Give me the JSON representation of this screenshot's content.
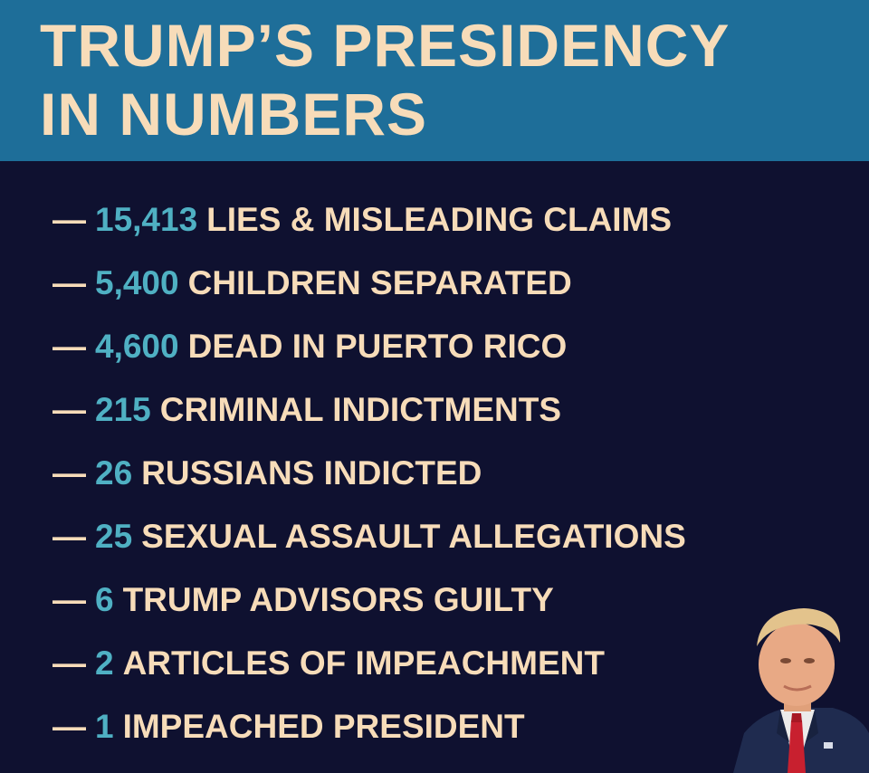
{
  "header": {
    "title_line1": "TRUMP’S PRESIDENCY",
    "title_line2": "IN NUMBERS"
  },
  "colors": {
    "header_bg": "#1e6e99",
    "body_bg": "#0f1130",
    "text_cream": "#f7dcb9",
    "number_teal": "#4fb0c3"
  },
  "items": [
    {
      "dash": "—",
      "number": "15,413",
      "label": "LIES & MISLEADING CLAIMS"
    },
    {
      "dash": "—",
      "number": "5,400",
      "label": "CHILDREN SEPARATED"
    },
    {
      "dash": "—",
      "number": "4,600",
      "label": "DEAD IN PUERTO RICO"
    },
    {
      "dash": "—",
      "number": "215",
      "label": "CRIMINAL INDICTMENTS"
    },
    {
      "dash": "—",
      "number": "26",
      "label": "RUSSIANS INDICTED"
    },
    {
      "dash": "—",
      "number": "25",
      "label": "SEXUAL ASSAULT ALLEGATIONS"
    },
    {
      "dash": "—",
      "number": "6",
      "label": "TRUMP ADVISORS GUILTY"
    },
    {
      "dash": "—",
      "number": "2",
      "label": "ARTICLES OF IMPEACHMENT"
    },
    {
      "dash": "—",
      "number": "1",
      "label": "IMPEACHED PRESIDENT"
    }
  ],
  "portrait_icon": "person-portrait"
}
